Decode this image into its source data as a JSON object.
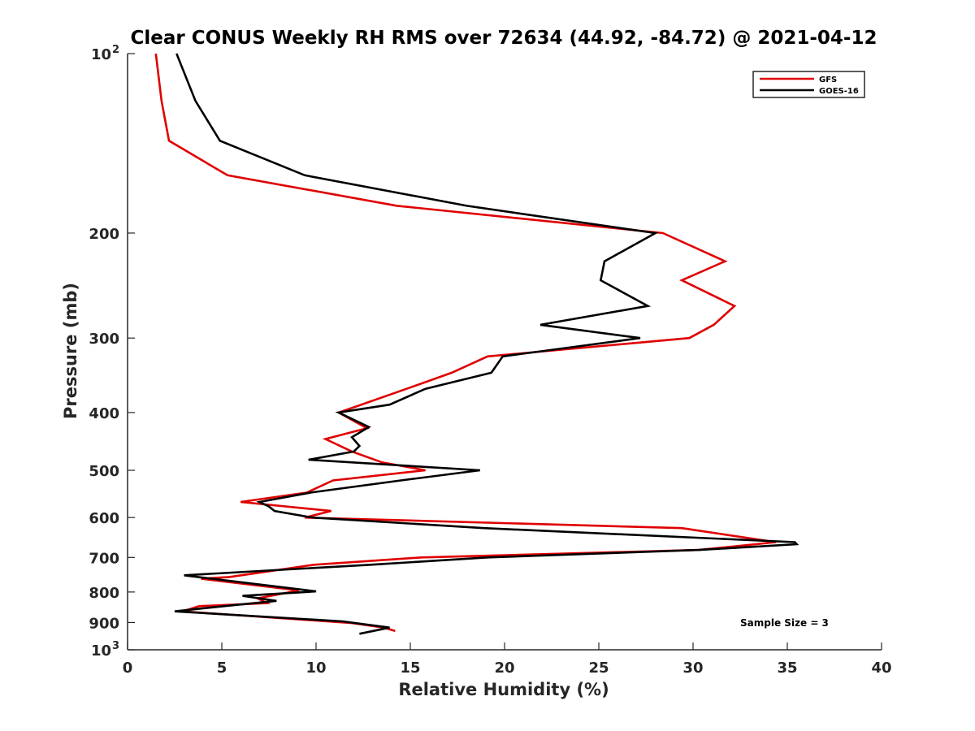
{
  "chart_data": {
    "type": "line",
    "title": "Clear CONUS Weekly RH RMS over 72634 (44.92, -84.72) @ 2021-04-12",
    "xlabel": "Relative Humidity (%)",
    "ylabel": "Pressure (mb)",
    "xlim": [
      0,
      40
    ],
    "ylim": [
      100,
      1000
    ],
    "yscale": "log",
    "yreversed": true,
    "x_ticks": [
      "0",
      "5",
      "10",
      "15",
      "20",
      "25",
      "30",
      "35",
      "40"
    ],
    "y_ticks": [
      {
        "value": 100,
        "label": "10",
        "exp": "2"
      },
      {
        "value": 200,
        "label": "200",
        "exp": ""
      },
      {
        "value": 300,
        "label": "300",
        "exp": ""
      },
      {
        "value": 400,
        "label": "400",
        "exp": ""
      },
      {
        "value": 500,
        "label": "500",
        "exp": ""
      },
      {
        "value": 600,
        "label": "600",
        "exp": ""
      },
      {
        "value": 700,
        "label": "700",
        "exp": ""
      },
      {
        "value": 800,
        "label": "800",
        "exp": ""
      },
      {
        "value": 900,
        "label": "900",
        "exp": ""
      },
      {
        "value": 1000,
        "label": "10",
        "exp": "3"
      }
    ],
    "legend_position": "top-right",
    "annotation": "Sample Size = 3",
    "series": [
      {
        "name": "GFS",
        "color": "#e00000",
        "points": [
          [
            1.5,
            100
          ],
          [
            1.8,
            120
          ],
          [
            2.2,
            140
          ],
          [
            5.3,
            160
          ],
          [
            14.3,
            180
          ],
          [
            28.4,
            200
          ],
          [
            31.7,
            223
          ],
          [
            29.4,
            240
          ],
          [
            32.2,
            265
          ],
          [
            31.1,
            285
          ],
          [
            29.8,
            300
          ],
          [
            19.1,
            322
          ],
          [
            17.2,
            343
          ],
          [
            14.8,
            365
          ],
          [
            12.0,
            392
          ],
          [
            11.2,
            400
          ],
          [
            12.7,
            425
          ],
          [
            10.5,
            443
          ],
          [
            11.9,
            465
          ],
          [
            13.5,
            485
          ],
          [
            15.8,
            500
          ],
          [
            10.9,
            520
          ],
          [
            9.5,
            545
          ],
          [
            6.0,
            565
          ],
          [
            10.8,
            585
          ],
          [
            9.4,
            600
          ],
          [
            29.4,
            625
          ],
          [
            34.4,
            660
          ],
          [
            30.3,
            680
          ],
          [
            15.6,
            700
          ],
          [
            9.9,
            720
          ],
          [
            5.4,
            755
          ],
          [
            3.9,
            760
          ],
          [
            9.1,
            795
          ],
          [
            6.9,
            820
          ],
          [
            7.4,
            835
          ],
          [
            3.8,
            845
          ],
          [
            2.9,
            862
          ],
          [
            11.9,
            902
          ],
          [
            13.6,
            918
          ],
          [
            14.2,
            930
          ]
        ]
      },
      {
        "name": "GOES-16",
        "color": "#000000",
        "points": [
          [
            2.6,
            100
          ],
          [
            3.6,
            120
          ],
          [
            4.9,
            140
          ],
          [
            9.4,
            160
          ],
          [
            18.0,
            180
          ],
          [
            28.0,
            200
          ],
          [
            25.3,
            223
          ],
          [
            25.1,
            240
          ],
          [
            27.6,
            265
          ],
          [
            21.9,
            285
          ],
          [
            27.2,
            300
          ],
          [
            19.9,
            322
          ],
          [
            19.3,
            343
          ],
          [
            15.8,
            365
          ],
          [
            13.9,
            388
          ],
          [
            11.2,
            400
          ],
          [
            12.8,
            423
          ],
          [
            11.9,
            440
          ],
          [
            12.3,
            455
          ],
          [
            12.0,
            465
          ],
          [
            9.6,
            480
          ],
          [
            18.7,
            500
          ],
          [
            14.5,
            520
          ],
          [
            9.7,
            545
          ],
          [
            7.0,
            565
          ],
          [
            7.5,
            575
          ],
          [
            7.8,
            585
          ],
          [
            9.8,
            600
          ],
          [
            18.9,
            625
          ],
          [
            35.4,
            660
          ],
          [
            35.5,
            665
          ],
          [
            30.3,
            680
          ],
          [
            19.1,
            700
          ],
          [
            12.9,
            720
          ],
          [
            3.0,
            750
          ],
          [
            10.0,
            798
          ],
          [
            6.1,
            812
          ],
          [
            7.9,
            828
          ],
          [
            5.9,
            840
          ],
          [
            2.5,
            862
          ],
          [
            11.4,
            896
          ],
          [
            13.9,
            918
          ],
          [
            12.3,
            940
          ]
        ]
      }
    ]
  }
}
